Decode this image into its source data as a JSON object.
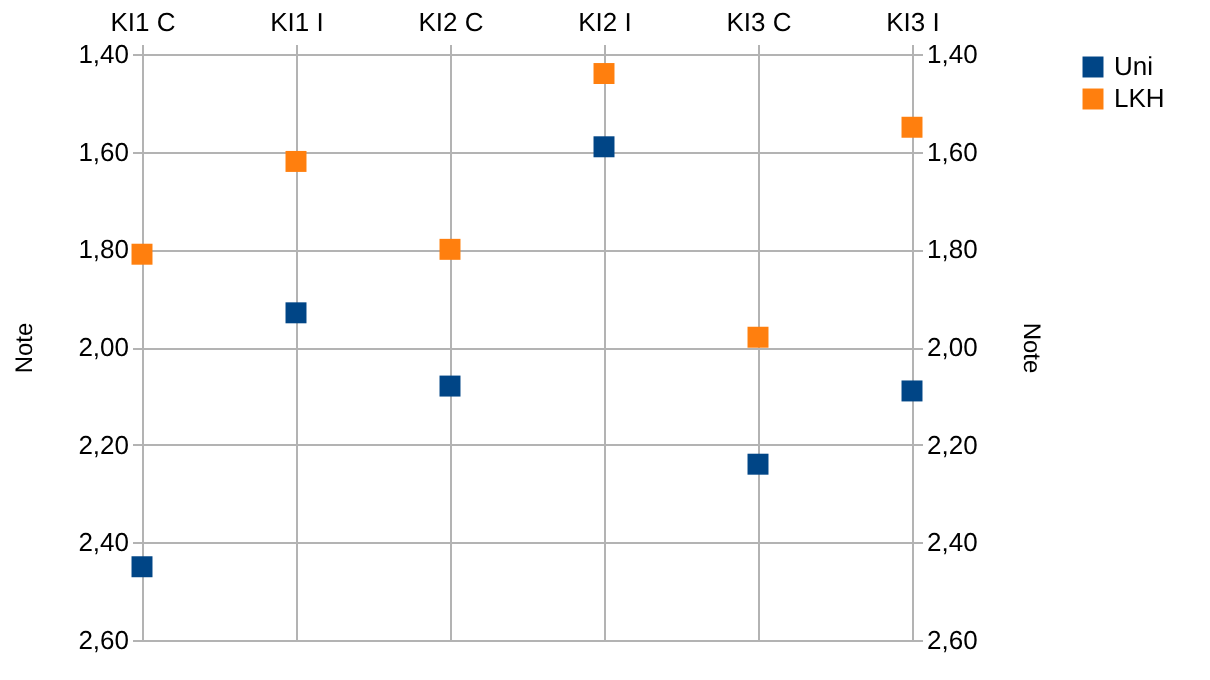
{
  "chart_data": {
    "type": "scatter",
    "categories": [
      "KI1 C",
      "KI1 I",
      "KI2 C",
      "KI2 I",
      "KI3 C",
      "KI3 I"
    ],
    "series": [
      {
        "name": "Uni",
        "color": "#004586",
        "marker": "square",
        "values": [
          2.45,
          1.93,
          2.08,
          1.59,
          2.24,
          2.09
        ]
      },
      {
        "name": "LKH",
        "color": "#ff7f0e",
        "marker": "square",
        "values": [
          1.81,
          1.62,
          1.8,
          1.44,
          1.98,
          1.55
        ]
      }
    ],
    "ylabel": "Note",
    "y2label": "Note",
    "ylim": [
      2.6,
      1.4
    ],
    "yticks": [
      {
        "value": 1.4,
        "label": "1,40"
      },
      {
        "value": 1.6,
        "label": "1,60"
      },
      {
        "value": 1.8,
        "label": "1,80"
      },
      {
        "value": 2.0,
        "label": "2,00"
      },
      {
        "value": 2.2,
        "label": "2,20"
      },
      {
        "value": 2.4,
        "label": "2,40"
      },
      {
        "value": 2.6,
        "label": "2,60"
      }
    ],
    "y2lim": [
      2.6,
      1.4
    ],
    "y2ticks": [
      {
        "value": 1.4,
        "label": "1,40"
      },
      {
        "value": 1.6,
        "label": "1,60"
      },
      {
        "value": 1.8,
        "label": "1,80"
      },
      {
        "value": 2.0,
        "label": "2,00"
      },
      {
        "value": 2.2,
        "label": "2,20"
      },
      {
        "value": 2.4,
        "label": "2,40"
      },
      {
        "value": 2.6,
        "label": "2,60"
      }
    ],
    "grid": true,
    "legend": "right"
  }
}
